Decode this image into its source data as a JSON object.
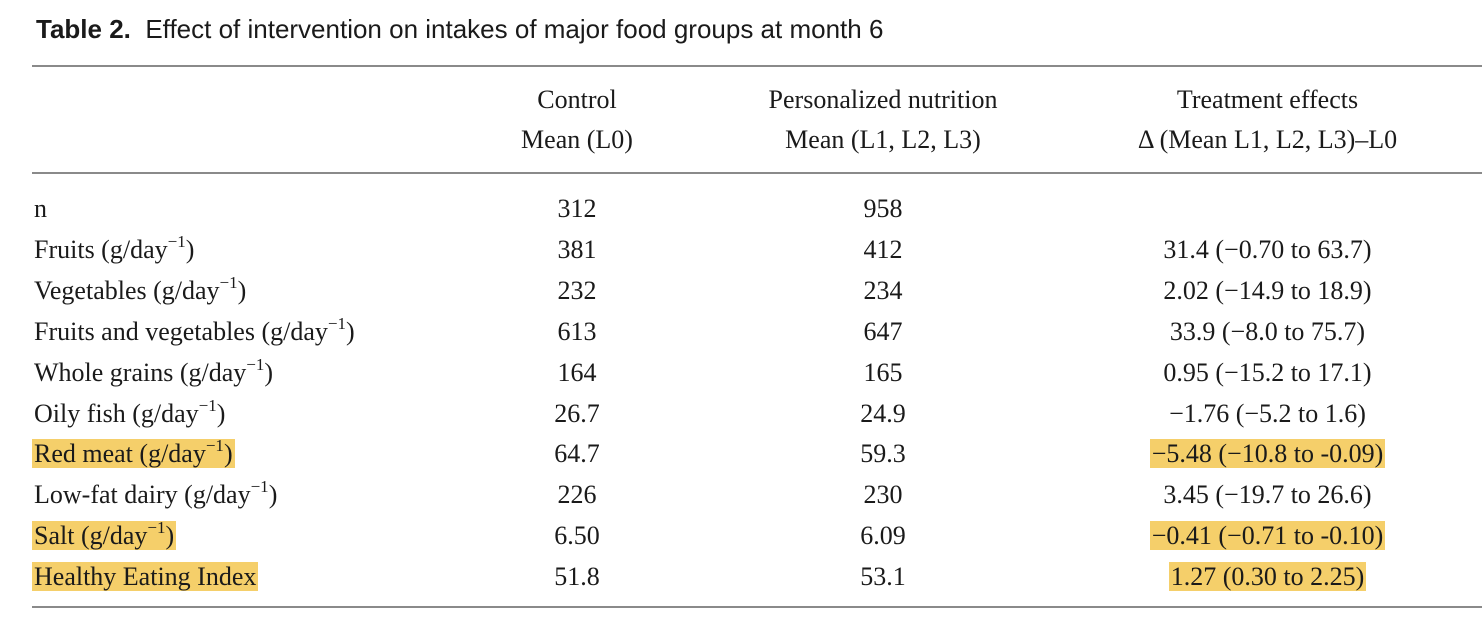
{
  "title": {
    "label": "Table 2.",
    "text": "Effect of intervention on intakes of major food groups at month 6"
  },
  "headers": {
    "control": [
      "Control",
      "Mean (L0)"
    ],
    "personalized": [
      "Personalized nutrition",
      "Mean (L1, L2, L3)"
    ],
    "treatment": [
      "Treatment effects",
      "Δ (Mean L1, L2, L3)–L0"
    ]
  },
  "highlight_color": "#f5cf6a",
  "rows": [
    {
      "label": "n",
      "unit_sup": "",
      "control": "312",
      "personalized": "958",
      "effect": "",
      "highlight": false
    },
    {
      "label": "Fruits (g/day",
      "unit_sup": "−1",
      "control": "381",
      "personalized": "412",
      "effect": "31.4 (−0.70 to 63.7)",
      "highlight": false
    },
    {
      "label": "Vegetables (g/day",
      "unit_sup": "−1",
      "control": "232",
      "personalized": "234",
      "effect": "2.02 (−14.9 to 18.9)",
      "highlight": false
    },
    {
      "label": "Fruits and vegetables (g/day",
      "unit_sup": "−1",
      "control": "613",
      "personalized": "647",
      "effect": "33.9 (−8.0 to 75.7)",
      "highlight": false
    },
    {
      "label": "Whole grains (g/day",
      "unit_sup": "−1",
      "control": "164",
      "personalized": "165",
      "effect": "0.95 (−15.2 to 17.1)",
      "highlight": false
    },
    {
      "label": "Oily fish (g/day",
      "unit_sup": "−1",
      "control": "26.7",
      "personalized": "24.9",
      "effect": "−1.76 (−5.2 to 1.6)",
      "highlight": false
    },
    {
      "label": "Red meat (g/day",
      "unit_sup": "−1",
      "control": "64.7",
      "personalized": "59.3",
      "effect": "−5.48 (−10.8 to -0.09)",
      "highlight": true
    },
    {
      "label": "Low-fat dairy (g/day",
      "unit_sup": "−1",
      "control": "226",
      "personalized": "230",
      "effect": "3.45 (−19.7 to 26.6)",
      "highlight": false
    },
    {
      "label": "Salt (g/day",
      "unit_sup": "−1",
      "control": "6.50",
      "personalized": "6.09",
      "effect": "−0.41 (−0.71 to -0.10)",
      "highlight": true
    },
    {
      "label": "Healthy Eating Index",
      "unit_sup": "",
      "control": "51.8",
      "personalized": "53.1",
      "effect": "1.27 (0.30 to 2.25)",
      "highlight": true
    }
  ]
}
